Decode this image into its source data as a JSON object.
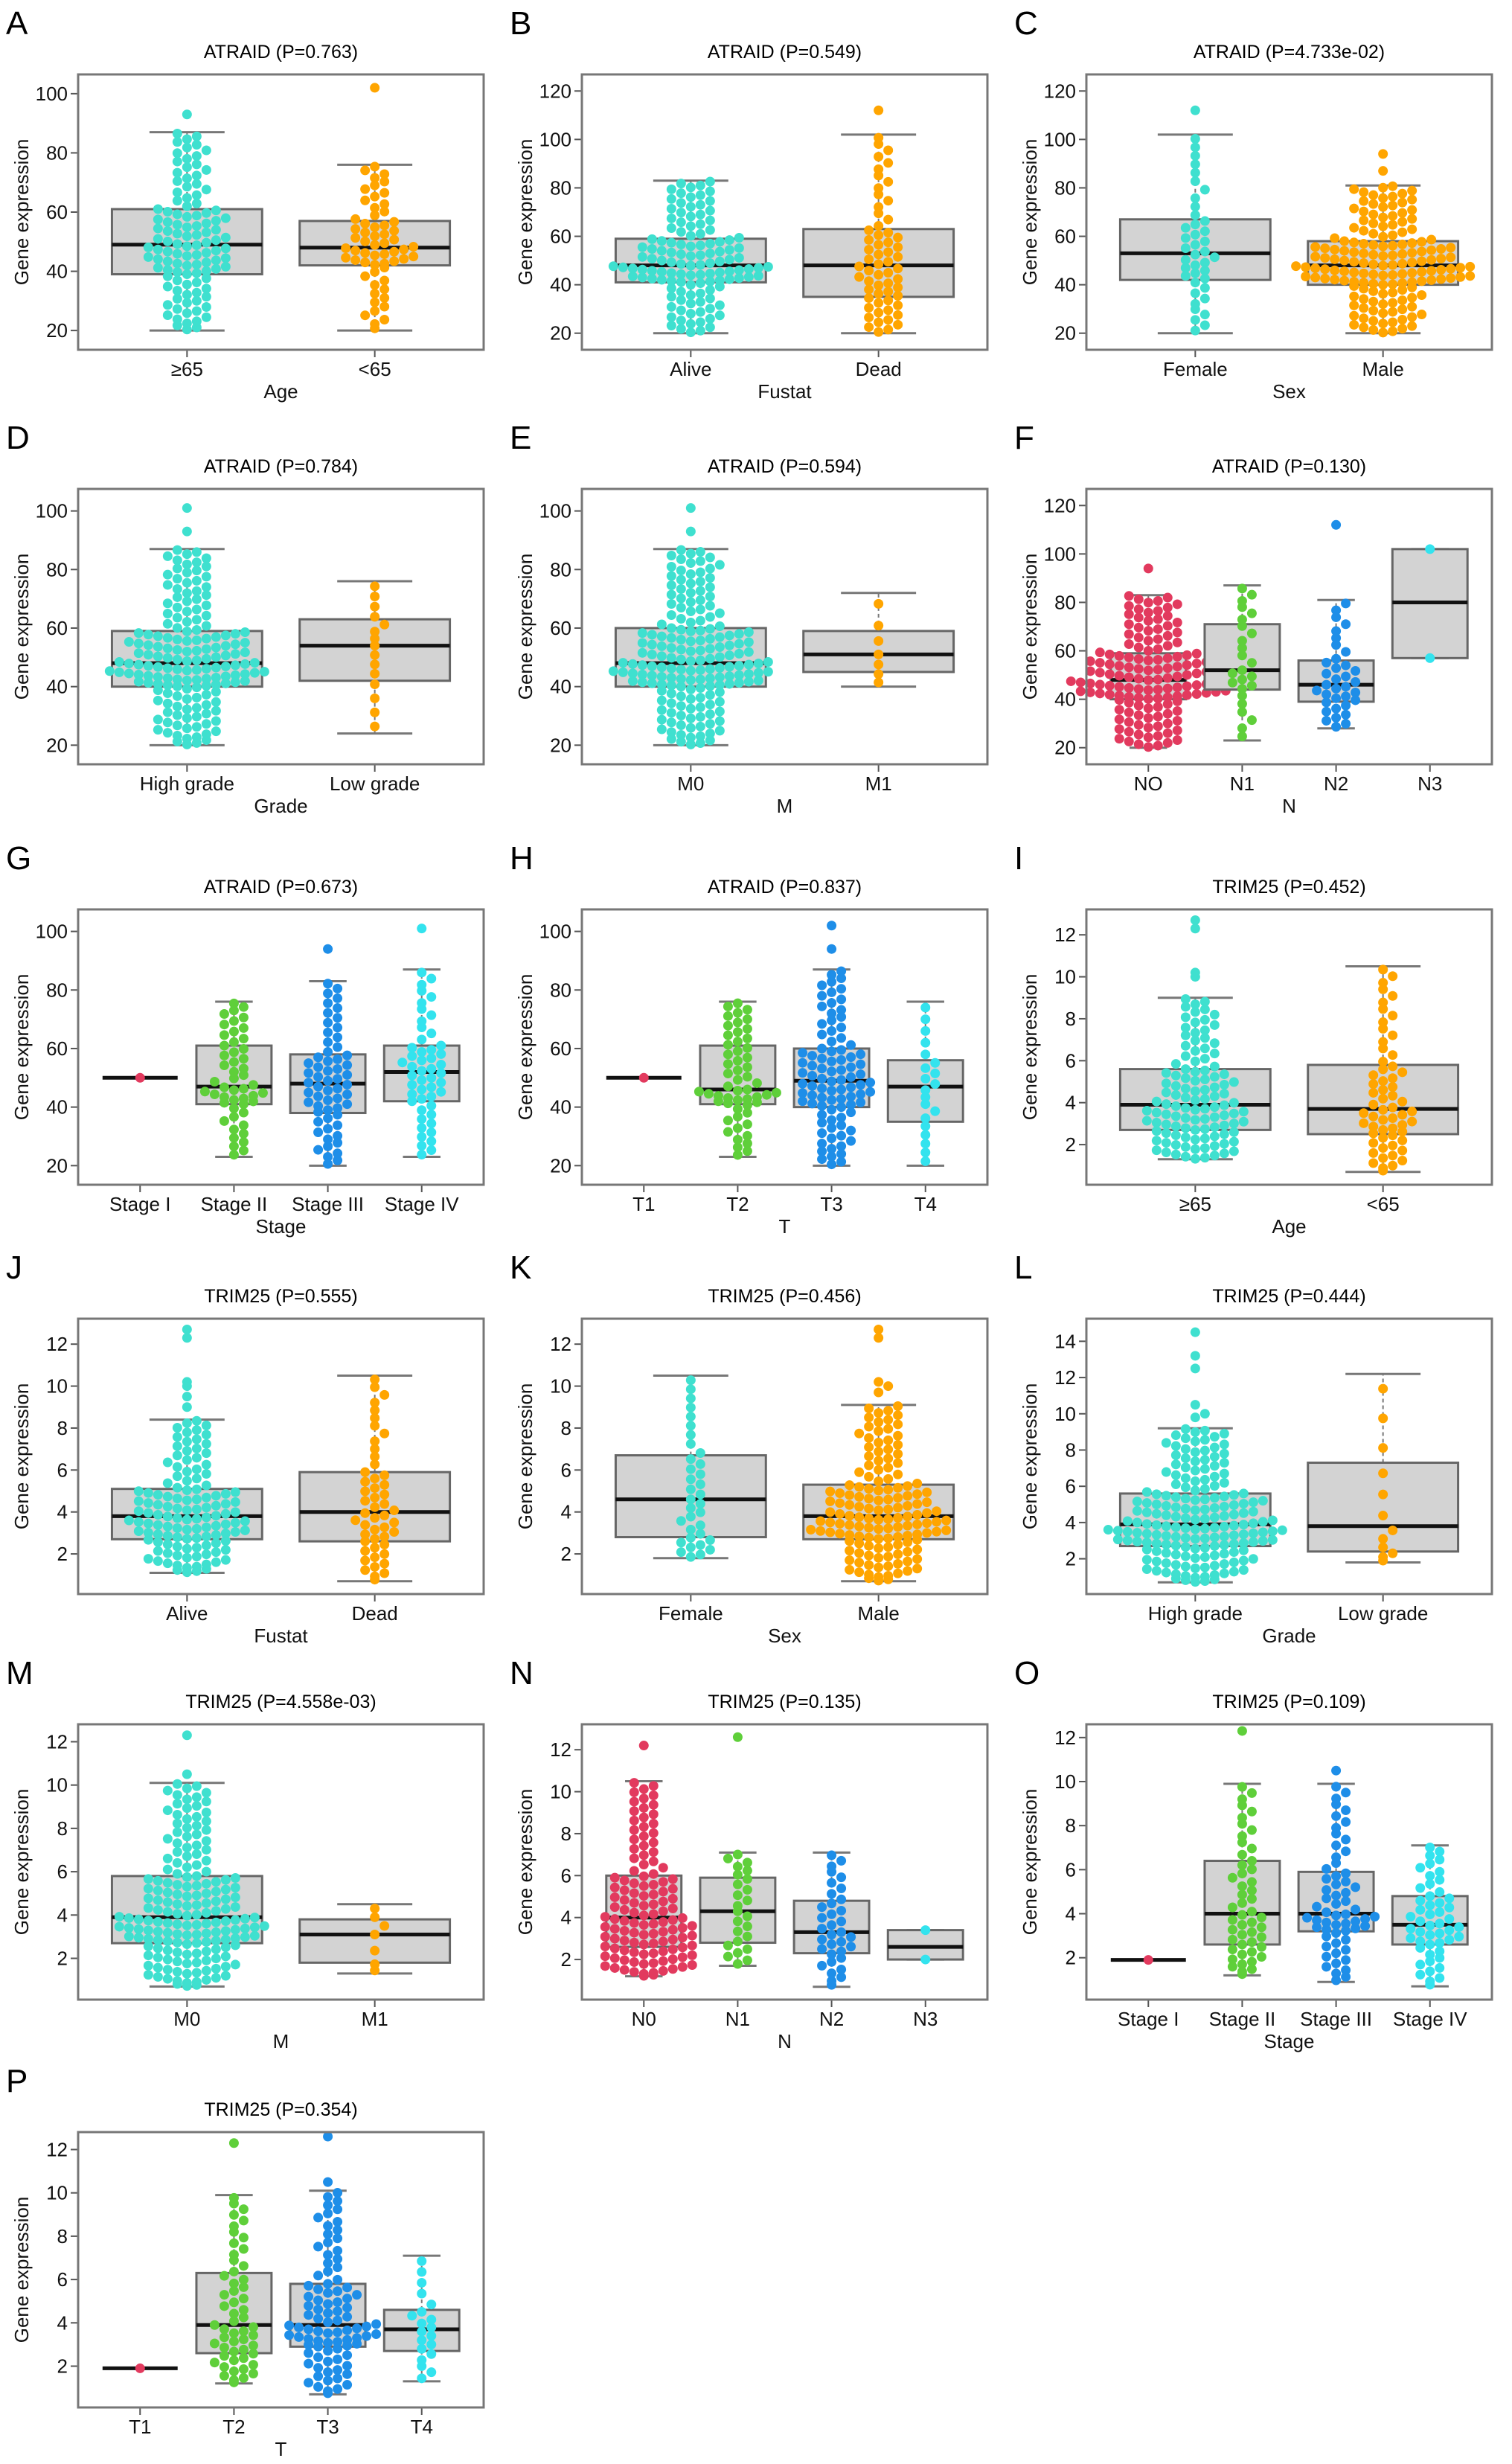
{
  "ylabel": "Gene expression",
  "palettes": {
    "two": [
      "#3fe0cf",
      "#ffa500"
    ],
    "four": [
      "#e23a5e",
      "#5fcf3a",
      "#1e8ee8",
      "#33e3ee"
    ]
  },
  "box_fill": "#d3d3d3",
  "chart_data": [
    {
      "letter": "A",
      "type": "box-swarm",
      "title": "ATRAID (P=0.763)",
      "xlabel": "Age",
      "ylabel": "Gene expression",
      "ylim": [
        15,
        105
      ],
      "yticks": [
        20,
        40,
        60,
        80,
        100
      ],
      "groups": [
        {
          "label": "≥65",
          "stats": [
            20,
            39,
            49,
            61,
            87
          ],
          "outliers": [
            93
          ],
          "n": 110
        },
        {
          "label": "<65",
          "stats": [
            20,
            42,
            48,
            57,
            76
          ],
          "outliers": [
            102
          ],
          "n": 60
        }
      ]
    },
    {
      "letter": "B",
      "type": "box-swarm",
      "title": "ATRAID (P=0.549)",
      "xlabel": "Fustat",
      "ylabel": "Gene expression",
      "ylim": [
        15,
        125
      ],
      "yticks": [
        20,
        40,
        60,
        80,
        100,
        120
      ],
      "groups": [
        {
          "label": "Alive",
          "stats": [
            20,
            41,
            48,
            59,
            83
          ],
          "outliers": [],
          "n": 120
        },
        {
          "label": "Dead",
          "stats": [
            20,
            35,
            48,
            63,
            102
          ],
          "outliers": [
            112
          ],
          "n": 60
        }
      ]
    },
    {
      "letter": "C",
      "type": "box-swarm",
      "title": "ATRAID (P=4.733e-02)",
      "xlabel": "Sex",
      "ylabel": "Gene expression",
      "ylim": [
        15,
        125
      ],
      "yticks": [
        20,
        40,
        60,
        80,
        100,
        120
      ],
      "groups": [
        {
          "label": "Female",
          "stats": [
            20,
            42,
            53,
            67,
            102
          ],
          "outliers": [
            112
          ],
          "n": 40
        },
        {
          "label": "Male",
          "stats": [
            20,
            40,
            48,
            58,
            81
          ],
          "outliers": [
            87,
            94
          ],
          "n": 150
        }
      ]
    },
    {
      "letter": "D",
      "type": "box-swarm",
      "title": "ATRAID (P=0.784)",
      "xlabel": "Grade",
      "ylabel": "Gene expression",
      "ylim": [
        15,
        106
      ],
      "yticks": [
        20,
        40,
        60,
        80,
        100
      ],
      "groups": [
        {
          "label": "High grade",
          "stats": [
            20,
            40,
            48,
            59,
            87
          ],
          "outliers": [
            93,
            101
          ],
          "n": 160
        },
        {
          "label": "Low grade",
          "stats": [
            24,
            42,
            54,
            63,
            76
          ],
          "outliers": [],
          "n": 15
        }
      ]
    },
    {
      "letter": "E",
      "type": "box-swarm",
      "title": "ATRAID (P=0.594)",
      "xlabel": "M",
      "ylabel": "Gene expression",
      "ylim": [
        15,
        106
      ],
      "yticks": [
        20,
        40,
        60,
        80,
        100
      ],
      "groups": [
        {
          "label": "M0",
          "stats": [
            20,
            40,
            48,
            60,
            87
          ],
          "outliers": [
            93,
            101
          ],
          "n": 170
        },
        {
          "label": "M1",
          "stats": [
            40,
            45,
            51,
            59,
            72
          ],
          "outliers": [],
          "n": 7
        }
      ]
    },
    {
      "letter": "F",
      "type": "box-swarm",
      "title": "ATRAID (P=0.130)",
      "xlabel": "N",
      "ylabel": "Gene expression",
      "ylim": [
        15,
        125
      ],
      "yticks": [
        20,
        40,
        60,
        80,
        100,
        120
      ],
      "groups": [
        {
          "label": "NO",
          "stats": [
            20,
            40,
            48,
            59,
            83
          ],
          "outliers": [
            94
          ],
          "n": 140
        },
        {
          "label": "N1",
          "stats": [
            23,
            44,
            52,
            71,
            87
          ],
          "outliers": [],
          "n": 25
        },
        {
          "label": "N2",
          "stats": [
            28,
            39,
            46,
            56,
            81
          ],
          "outliers": [
            112
          ],
          "n": 35
        },
        {
          "label": "N3",
          "stats": [
            57,
            57,
            80,
            102,
            102
          ],
          "outliers": [],
          "n": 2
        }
      ]
    },
    {
      "letter": "G",
      "type": "box-swarm",
      "title": "ATRAID (P=0.673)",
      "xlabel": "Stage",
      "ylabel": "Gene expression",
      "ylim": [
        15,
        106
      ],
      "yticks": [
        20,
        40,
        60,
        80,
        100
      ],
      "groups": [
        {
          "label": "Stage I",
          "stats": [
            50,
            50,
            50,
            50,
            50
          ],
          "outliers": [],
          "n": 1
        },
        {
          "label": "Stage II",
          "stats": [
            23,
            41,
            47,
            61,
            76
          ],
          "outliers": [],
          "n": 50
        },
        {
          "label": "Stage III",
          "stats": [
            20,
            38,
            48,
            58,
            83
          ],
          "outliers": [
            94
          ],
          "n": 60
        },
        {
          "label": "Stage IV",
          "stats": [
            23,
            42,
            52,
            61,
            87
          ],
          "outliers": [
            101
          ],
          "n": 50
        }
      ]
    },
    {
      "letter": "H",
      "type": "box-swarm",
      "title": "ATRAID (P=0.837)",
      "xlabel": "T",
      "ylabel": "Gene expression",
      "ylim": [
        15,
        106
      ],
      "yticks": [
        20,
        40,
        60,
        80,
        100
      ],
      "groups": [
        {
          "label": "T1",
          "stats": [
            50,
            50,
            50,
            50,
            50
          ],
          "outliers": [],
          "n": 1
        },
        {
          "label": "T2",
          "stats": [
            23,
            41,
            46,
            61,
            76
          ],
          "outliers": [],
          "n": 55
        },
        {
          "label": "T3",
          "stats": [
            20,
            40,
            49,
            60,
            87
          ],
          "outliers": [
            94,
            102
          ],
          "n": 90
        },
        {
          "label": "T4",
          "stats": [
            20,
            35,
            47,
            56,
            76
          ],
          "outliers": [],
          "n": 20
        }
      ]
    },
    {
      "letter": "I",
      "type": "box-swarm",
      "title": "TRIM25 (P=0.452)",
      "xlabel": "Age",
      "ylabel": "Gene expression",
      "ylim": [
        0.3,
        13
      ],
      "yticks": [
        2,
        4,
        6,
        8,
        10,
        12
      ],
      "groups": [
        {
          "label": "≥65",
          "stats": [
            1.3,
            2.7,
            3.9,
            5.6,
            9
          ],
          "outliers": [
            10,
            10.2,
            12.3,
            12.7
          ],
          "n": 110
        },
        {
          "label": "<65",
          "stats": [
            0.7,
            2.5,
            3.7,
            5.8,
            10.5
          ],
          "outliers": [],
          "n": 60
        }
      ]
    },
    {
      "letter": "J",
      "type": "box-swarm",
      "title": "TRIM25 (P=0.555)",
      "xlabel": "Fustat",
      "ylabel": "Gene expression",
      "ylim": [
        0.3,
        13
      ],
      "yticks": [
        2,
        4,
        6,
        8,
        10,
        12
      ],
      "groups": [
        {
          "label": "Alive",
          "stats": [
            1.1,
            2.7,
            3.8,
            5.1,
            8.4
          ],
          "outliers": [
            9,
            9.5,
            10,
            10.2,
            12.3,
            12.7
          ],
          "n": 120
        },
        {
          "label": "Dead",
          "stats": [
            0.7,
            2.6,
            4,
            5.9,
            10.5
          ],
          "outliers": [],
          "n": 50
        }
      ]
    },
    {
      "letter": "K",
      "type": "box-swarm",
      "title": "TRIM25 (P=0.456)",
      "xlabel": "Sex",
      "ylabel": "Gene expression",
      "ylim": [
        0.3,
        13
      ],
      "yticks": [
        2,
        4,
        6,
        8,
        10,
        12
      ],
      "groups": [
        {
          "label": "Female",
          "stats": [
            1.8,
            2.8,
            4.6,
            6.7,
            10.5
          ],
          "outliers": [],
          "n": 35
        },
        {
          "label": "Male",
          "stats": [
            0.7,
            2.7,
            3.8,
            5.3,
            9.1
          ],
          "outliers": [
            9.7,
            10,
            10.2,
            12.3,
            12.7
          ],
          "n": 140
        }
      ]
    },
    {
      "letter": "L",
      "type": "box-swarm",
      "title": "TRIM25 (P=0.444)",
      "xlabel": "Grade",
      "ylabel": "Gene expression",
      "ylim": [
        0.3,
        15
      ],
      "yticks": [
        2,
        4,
        6,
        8,
        10,
        12,
        14
      ],
      "groups": [
        {
          "label": "High grade",
          "stats": [
            0.7,
            2.7,
            3.9,
            5.6,
            9.2
          ],
          "outliers": [
            9.8,
            10,
            10.5,
            12.5,
            13.2,
            14.5
          ],
          "n": 170
        },
        {
          "label": "Low grade",
          "stats": [
            1.8,
            2.4,
            3.8,
            7.3,
            12.2
          ],
          "outliers": [],
          "n": 12
        }
      ]
    },
    {
      "letter": "M",
      "type": "box-swarm",
      "title": "TRIM25 (P=4.558e-03)",
      "xlabel": "M",
      "ylabel": "Gene expression",
      "ylim": [
        0.3,
        12.6
      ],
      "yticks": [
        2,
        4,
        6,
        8,
        10,
        12
      ],
      "groups": [
        {
          "label": "M0",
          "stats": [
            0.7,
            2.7,
            3.9,
            5.8,
            10.1
          ],
          "outliers": [
            10.5,
            12.3
          ],
          "n": 170
        },
        {
          "label": "M1",
          "stats": [
            1.3,
            1.8,
            3.1,
            3.8,
            4.5
          ],
          "outliers": [],
          "n": 7
        }
      ]
    },
    {
      "letter": "N",
      "type": "box-swarm",
      "title": "TRIM25 (P=0.135)",
      "xlabel": "N",
      "ylabel": "Gene expression",
      "ylim": [
        0.3,
        13
      ],
      "yticks": [
        2,
        4,
        6,
        8,
        10,
        12
      ],
      "groups": [
        {
          "label": "N0",
          "stats": [
            1.2,
            2.6,
            4,
            6,
            10.5
          ],
          "outliers": [
            12.2
          ],
          "n": 120
        },
        {
          "label": "N1",
          "stats": [
            1.7,
            2.8,
            4.3,
            5.9,
            7.1
          ],
          "outliers": [
            12.6
          ],
          "n": 25
        },
        {
          "label": "N2",
          "stats": [
            0.7,
            2.3,
            3.3,
            4.8,
            7.1
          ],
          "outliers": [],
          "n": 35
        },
        {
          "label": "N3",
          "stats": [
            2,
            2,
            2.6,
            3.4,
            3.4
          ],
          "outliers": [],
          "n": 2
        }
      ]
    },
    {
      "letter": "O",
      "type": "box-swarm",
      "title": "TRIM25 (P=0.109)",
      "xlabel": "Stage",
      "ylabel": "Gene expression",
      "ylim": [
        0.3,
        12.4
      ],
      "yticks": [
        2,
        4,
        6,
        8,
        10,
        12
      ],
      "groups": [
        {
          "label": "Stage I",
          "stats": [
            1.9,
            1.9,
            1.9,
            1.9,
            1.9
          ],
          "outliers": [],
          "n": 1
        },
        {
          "label": "Stage II",
          "stats": [
            1.2,
            2.6,
            4,
            6.4,
            9.9
          ],
          "outliers": [
            12.3
          ],
          "n": 50
        },
        {
          "label": "Stage III",
          "stats": [
            0.9,
            3.2,
            4,
            5.9,
            9.9
          ],
          "outliers": [
            10.5
          ],
          "n": 60
        },
        {
          "label": "Stage IV",
          "stats": [
            0.7,
            2.6,
            3.5,
            4.8,
            7.1
          ],
          "outliers": [],
          "n": 50
        }
      ]
    },
    {
      "letter": "P",
      "type": "box-swarm",
      "title": "TRIM25 (P=0.354)",
      "xlabel": "T",
      "ylabel": "Gene expression",
      "ylim": [
        0.3,
        12.6
      ],
      "yticks": [
        2,
        4,
        6,
        8,
        10,
        12
      ],
      "groups": [
        {
          "label": "T1",
          "stats": [
            1.9,
            1.9,
            1.9,
            1.9,
            1.9
          ],
          "outliers": [],
          "n": 1
        },
        {
          "label": "T2",
          "stats": [
            1.2,
            2.6,
            3.9,
            6.3,
            9.9
          ],
          "outliers": [
            12.3
          ],
          "n": 55
        },
        {
          "label": "T3",
          "stats": [
            0.7,
            2.9,
            3.9,
            5.8,
            10.1
          ],
          "outliers": [
            10.5,
            12.6
          ],
          "n": 90
        },
        {
          "label": "T4",
          "stats": [
            1.3,
            2.7,
            3.7,
            4.6,
            7.1
          ],
          "outliers": [],
          "n": 20
        }
      ]
    }
  ]
}
